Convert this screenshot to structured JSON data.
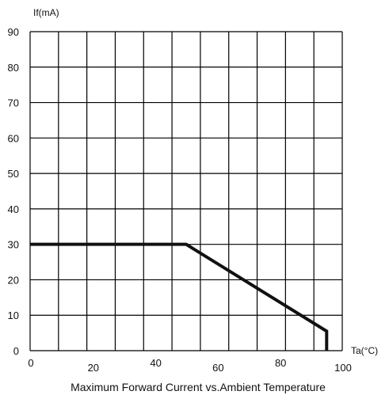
{
  "chart_data": {
    "type": "line",
    "title": "Maximum Forward Current vs.Ambient Temperature",
    "xlabel": "Ta(°C)",
    "ylabel": "If(mA)",
    "xlim": [
      0,
      100
    ],
    "ylim": [
      0,
      90
    ],
    "x_ticks": [
      "0",
      "20",
      "40",
      "60",
      "80",
      "100"
    ],
    "x_tick_values": [
      0,
      20,
      40,
      60,
      80,
      100
    ],
    "y_ticks": [
      "0",
      "10",
      "20",
      "30",
      "40",
      "50",
      "60",
      "70",
      "80",
      "90"
    ],
    "y_tick_values": [
      0,
      10,
      20,
      30,
      40,
      50,
      60,
      70,
      80,
      90
    ],
    "grid": true,
    "series": [
      {
        "x": [
          0,
          50,
          95,
          95
        ],
        "y": [
          30,
          30,
          5.5,
          0
        ]
      }
    ]
  }
}
